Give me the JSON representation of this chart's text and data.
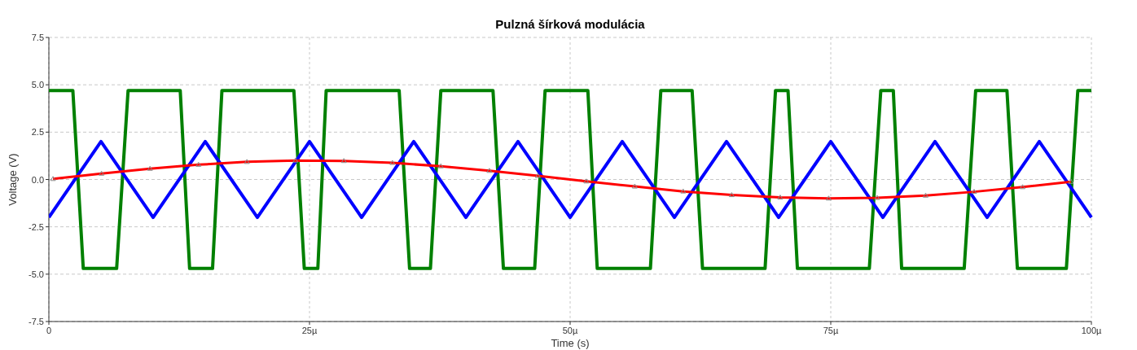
{
  "chart_data": {
    "type": "line",
    "title": "Pulzná šírková modulácia",
    "xlabel": "Time (s)",
    "ylabel": "Voltage (V)",
    "xlim": [
      0,
      100
    ],
    "xticks": [
      0,
      {
        "value": 25,
        "label": "25µ"
      },
      {
        "value": 50,
        "label": "50µ"
      },
      {
        "value": 75,
        "label": "75µ"
      },
      {
        "value": 100,
        "label": "100µ"
      }
    ],
    "ylim": [
      -7.5,
      7.5
    ],
    "yticks": [
      {
        "value": -7.5,
        "label": "-7.5"
      },
      {
        "value": -5,
        "label": "-5.0"
      },
      {
        "value": -2.5,
        "label": "-2.5"
      },
      {
        "value": 0,
        "label": "0.0"
      },
      {
        "value": 2.5,
        "label": "2.5"
      },
      {
        "value": 5,
        "label": "5.0"
      },
      {
        "value": 7.5,
        "label": "7.5"
      }
    ],
    "grid": true,
    "line_style": "solid",
    "series": [
      {
        "color": "#008000",
        "marker": "none",
        "x": [
          0,
          2.3,
          3.3,
          6.5,
          7.6,
          12.6,
          13.5,
          15.7,
          16.6,
          23.5,
          24.5,
          25.8,
          26.6,
          33.6,
          34.6,
          36.6,
          37.6,
          42.6,
          43.6,
          46.6,
          47.6,
          51.7,
          52.6,
          57.7,
          58.7,
          61.7,
          62.7,
          68.7,
          69.7,
          70.9,
          71.8,
          78.7,
          79.8,
          81.0,
          81.8,
          87.8,
          88.9,
          91.9,
          92.9,
          97.6,
          98.7,
          100
        ],
        "values": [
          4.7,
          4.7,
          -4.7,
          -4.7,
          4.7,
          4.7,
          -4.7,
          -4.7,
          4.7,
          4.7,
          -4.7,
          -4.7,
          4.7,
          4.7,
          -4.7,
          -4.7,
          4.7,
          4.7,
          -4.7,
          -4.7,
          4.7,
          4.7,
          -4.7,
          -4.7,
          4.7,
          4.7,
          -4.7,
          -4.7,
          4.7,
          4.7,
          -4.7,
          -4.7,
          4.7,
          4.7,
          -4.7,
          -4.7,
          4.7,
          4.7,
          -4.7,
          -4.7,
          4.7,
          4.7
        ]
      },
      {
        "color": "#0000ff",
        "marker": "none",
        "x": [
          0,
          5,
          10,
          15,
          20,
          25,
          30,
          35,
          40,
          45,
          50,
          55,
          60,
          65,
          70,
          75,
          80,
          85,
          90,
          95,
          100
        ],
        "values": [
          -2,
          2,
          -2,
          2,
          -2,
          2,
          -2,
          2,
          -2,
          2,
          -2,
          2,
          -2,
          2,
          -2,
          2,
          -2,
          2,
          -2,
          2,
          -2
        ]
      },
      {
        "color": "#ff0000",
        "marker": "triangle",
        "x": [
          0.4,
          5.05,
          9.7,
          14.35,
          19.0,
          23.65,
          28.3,
          32.95,
          37.6,
          42.25,
          46.9,
          51.55,
          56.2,
          60.85,
          65.5,
          70.15,
          74.8,
          79.45,
          84.1,
          88.75,
          93.4,
          98.05
        ],
        "values": [
          0.03,
          0.31,
          0.57,
          0.78,
          0.93,
          1.0,
          0.98,
          0.88,
          0.7,
          0.46,
          0.19,
          -0.1,
          -0.37,
          -0.63,
          -0.82,
          -0.95,
          -1.0,
          -0.97,
          -0.85,
          -0.65,
          -0.4,
          -0.12
        ]
      }
    ]
  }
}
